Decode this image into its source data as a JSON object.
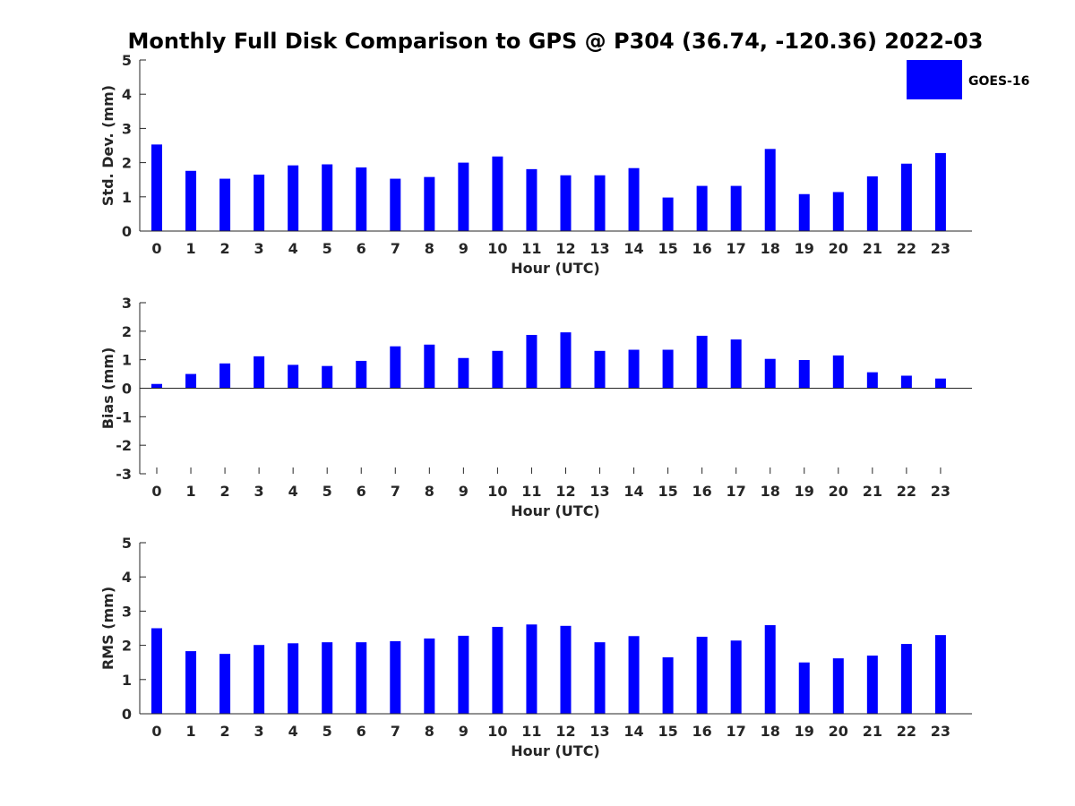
{
  "chart_data": {
    "title": "Monthly Full Disk Comparison to GPS @ P304 (36.74, -120.36) 2022-03",
    "legend": {
      "label": "GOES-16",
      "color": "#0000ff",
      "placement": "top-right"
    },
    "panels": [
      {
        "type": "bar",
        "xlabel": "Hour (UTC)",
        "ylabel": "Std. Dev. (mm)",
        "ylim": [
          0,
          5
        ],
        "yticks": [
          "0",
          "1",
          "2",
          "3",
          "4",
          "5"
        ],
        "categories": [
          "0",
          "1",
          "2",
          "3",
          "4",
          "5",
          "6",
          "7",
          "8",
          "9",
          "10",
          "11",
          "12",
          "13",
          "14",
          "15",
          "16",
          "17",
          "18",
          "19",
          "20",
          "21",
          "22",
          "23"
        ],
        "series": [
          {
            "name": "GOES-16",
            "values": [
              2.53,
              1.76,
              1.53,
              1.65,
              1.92,
              1.95,
              1.86,
              1.53,
              1.58,
              2.0,
              2.18,
              1.81,
              1.63,
              1.63,
              1.84,
              0.98,
              1.32,
              1.32,
              2.4,
              1.08,
              1.14,
              1.6,
              1.97,
              2.28
            ]
          }
        ]
      },
      {
        "type": "bar",
        "xlabel": "Hour (UTC)",
        "ylabel": "Bias (mm)",
        "ylim": [
          -3,
          3
        ],
        "yticks": [
          "-3",
          "-2",
          "-1",
          "0",
          "1",
          "2",
          "3"
        ],
        "categories": [
          "0",
          "1",
          "2",
          "3",
          "4",
          "5",
          "6",
          "7",
          "8",
          "9",
          "10",
          "11",
          "12",
          "13",
          "14",
          "15",
          "16",
          "17",
          "18",
          "19",
          "20",
          "21",
          "22",
          "23"
        ],
        "series": [
          {
            "name": "GOES-16",
            "values": [
              0.15,
              0.5,
              0.87,
              1.12,
              0.82,
              0.78,
              0.96,
              1.47,
              1.53,
              1.06,
              1.31,
              1.87,
              1.96,
              1.31,
              1.35,
              1.35,
              1.84,
              1.71,
              1.03,
              0.99,
              1.15,
              0.56,
              0.44,
              0.34
            ]
          }
        ]
      },
      {
        "type": "bar",
        "xlabel": "Hour (UTC)",
        "ylabel": "RMS (mm)",
        "ylim": [
          0,
          5
        ],
        "yticks": [
          "0",
          "1",
          "2",
          "3",
          "4",
          "5"
        ],
        "categories": [
          "0",
          "1",
          "2",
          "3",
          "4",
          "5",
          "6",
          "7",
          "8",
          "9",
          "10",
          "11",
          "12",
          "13",
          "14",
          "15",
          "16",
          "17",
          "18",
          "19",
          "20",
          "21",
          "22",
          "23"
        ],
        "series": [
          {
            "name": "GOES-16",
            "values": [
              2.5,
              1.83,
              1.75,
              2.01,
              2.06,
              2.09,
              2.09,
              2.12,
              2.2,
              2.28,
              2.54,
              2.61,
              2.57,
              2.09,
              2.27,
              1.65,
              2.25,
              2.14,
              2.59,
              1.5,
              1.62,
              1.7,
              2.04,
              2.3
            ]
          }
        ]
      }
    ]
  }
}
